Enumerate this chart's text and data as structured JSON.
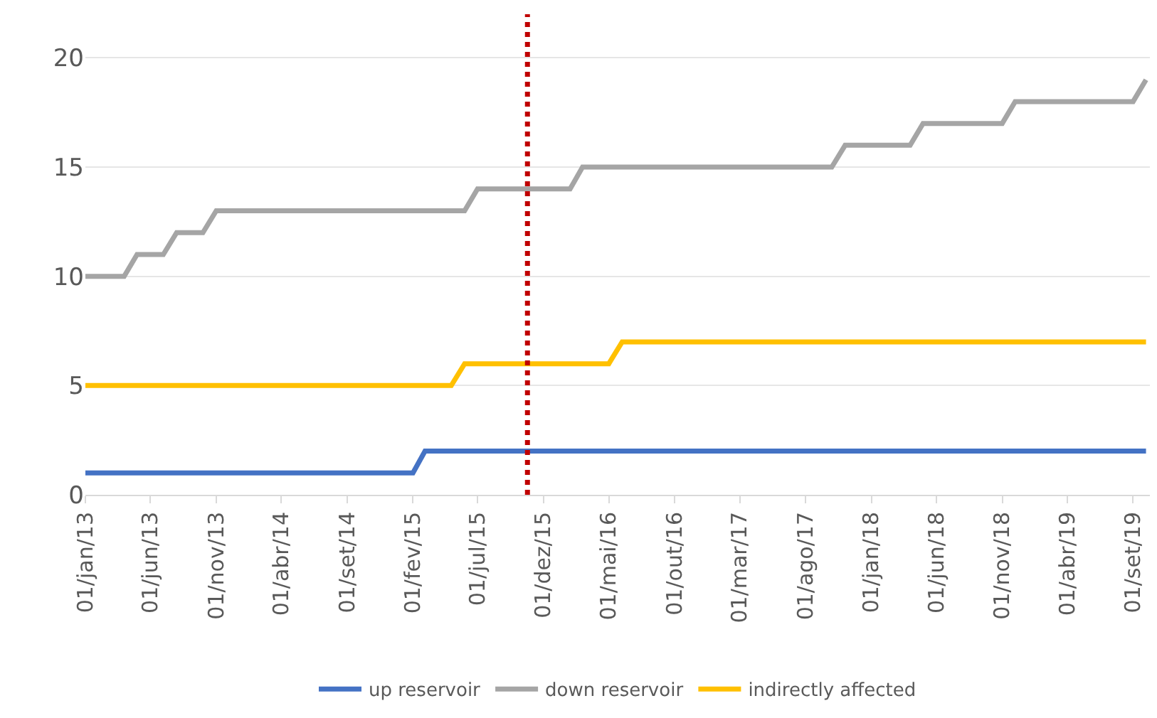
{
  "chart_data": {
    "type": "line",
    "series": [
      {
        "name": "up reservoir",
        "color": "#4472c4",
        "x": [
          "2013-01-01",
          "2015-02-01",
          "2015-03-01",
          "2019-10-01"
        ],
        "values": [
          1,
          1,
          2,
          2
        ]
      },
      {
        "name": "down reservoir",
        "color": "#a5a5a5",
        "x": [
          "2013-01-01",
          "2013-04-01",
          "2013-05-01",
          "2013-07-01",
          "2013-08-01",
          "2013-10-01",
          "2013-11-01",
          "2015-06-01",
          "2015-07-01",
          "2016-02-01",
          "2016-03-01",
          "2017-10-01",
          "2017-11-01",
          "2018-04-01",
          "2018-05-01",
          "2018-11-01",
          "2018-12-01",
          "2019-09-01",
          "2019-10-01"
        ],
        "values": [
          10,
          10,
          11,
          11,
          12,
          12,
          13,
          13,
          14,
          14,
          15,
          15,
          16,
          16,
          17,
          17,
          18,
          18,
          19
        ]
      },
      {
        "name": "indirectly affected",
        "color": "#ffc000",
        "x": [
          "2013-01-01",
          "2015-05-01",
          "2015-06-01",
          "2016-05-01",
          "2016-06-01",
          "2019-10-01"
        ],
        "values": [
          5,
          5,
          6,
          6,
          7,
          7
        ]
      }
    ],
    "xlim": [
      "2013-01-01",
      "2019-10-10"
    ],
    "xticks": [
      {
        "value": "2013-01-01",
        "label": "01/jan/13"
      },
      {
        "value": "2013-06-01",
        "label": "01/jun/13"
      },
      {
        "value": "2013-11-01",
        "label": "01/nov/13"
      },
      {
        "value": "2014-04-01",
        "label": "01/abr/14"
      },
      {
        "value": "2014-09-01",
        "label": "01/set/14"
      },
      {
        "value": "2015-02-01",
        "label": "01/fev/15"
      },
      {
        "value": "2015-07-01",
        "label": "01/jul/15"
      },
      {
        "value": "2015-12-01",
        "label": "01/dez/15"
      },
      {
        "value": "2016-05-01",
        "label": "01/mai/16"
      },
      {
        "value": "2016-10-01",
        "label": "01/out/16"
      },
      {
        "value": "2017-03-01",
        "label": "01/mar/17"
      },
      {
        "value": "2017-08-01",
        "label": "01/ago/17"
      },
      {
        "value": "2018-01-01",
        "label": "01/jan/18"
      },
      {
        "value": "2018-06-01",
        "label": "01/jun/18"
      },
      {
        "value": "2018-11-01",
        "label": "01/nov/18"
      },
      {
        "value": "2019-04-01",
        "label": "01/abr/19"
      },
      {
        "value": "2019-09-01",
        "label": "01/set/19"
      }
    ],
    "ylim": [
      0,
      22
    ],
    "yticks": [
      0,
      5,
      10,
      15,
      20
    ],
    "grid": "y",
    "legend": "bottom",
    "marker": "none",
    "line_style": "solid",
    "ref_lines": [
      {
        "axis": "x",
        "value": "2015-10-25",
        "color": "#c00000",
        "line_style": "dotted"
      }
    ]
  }
}
